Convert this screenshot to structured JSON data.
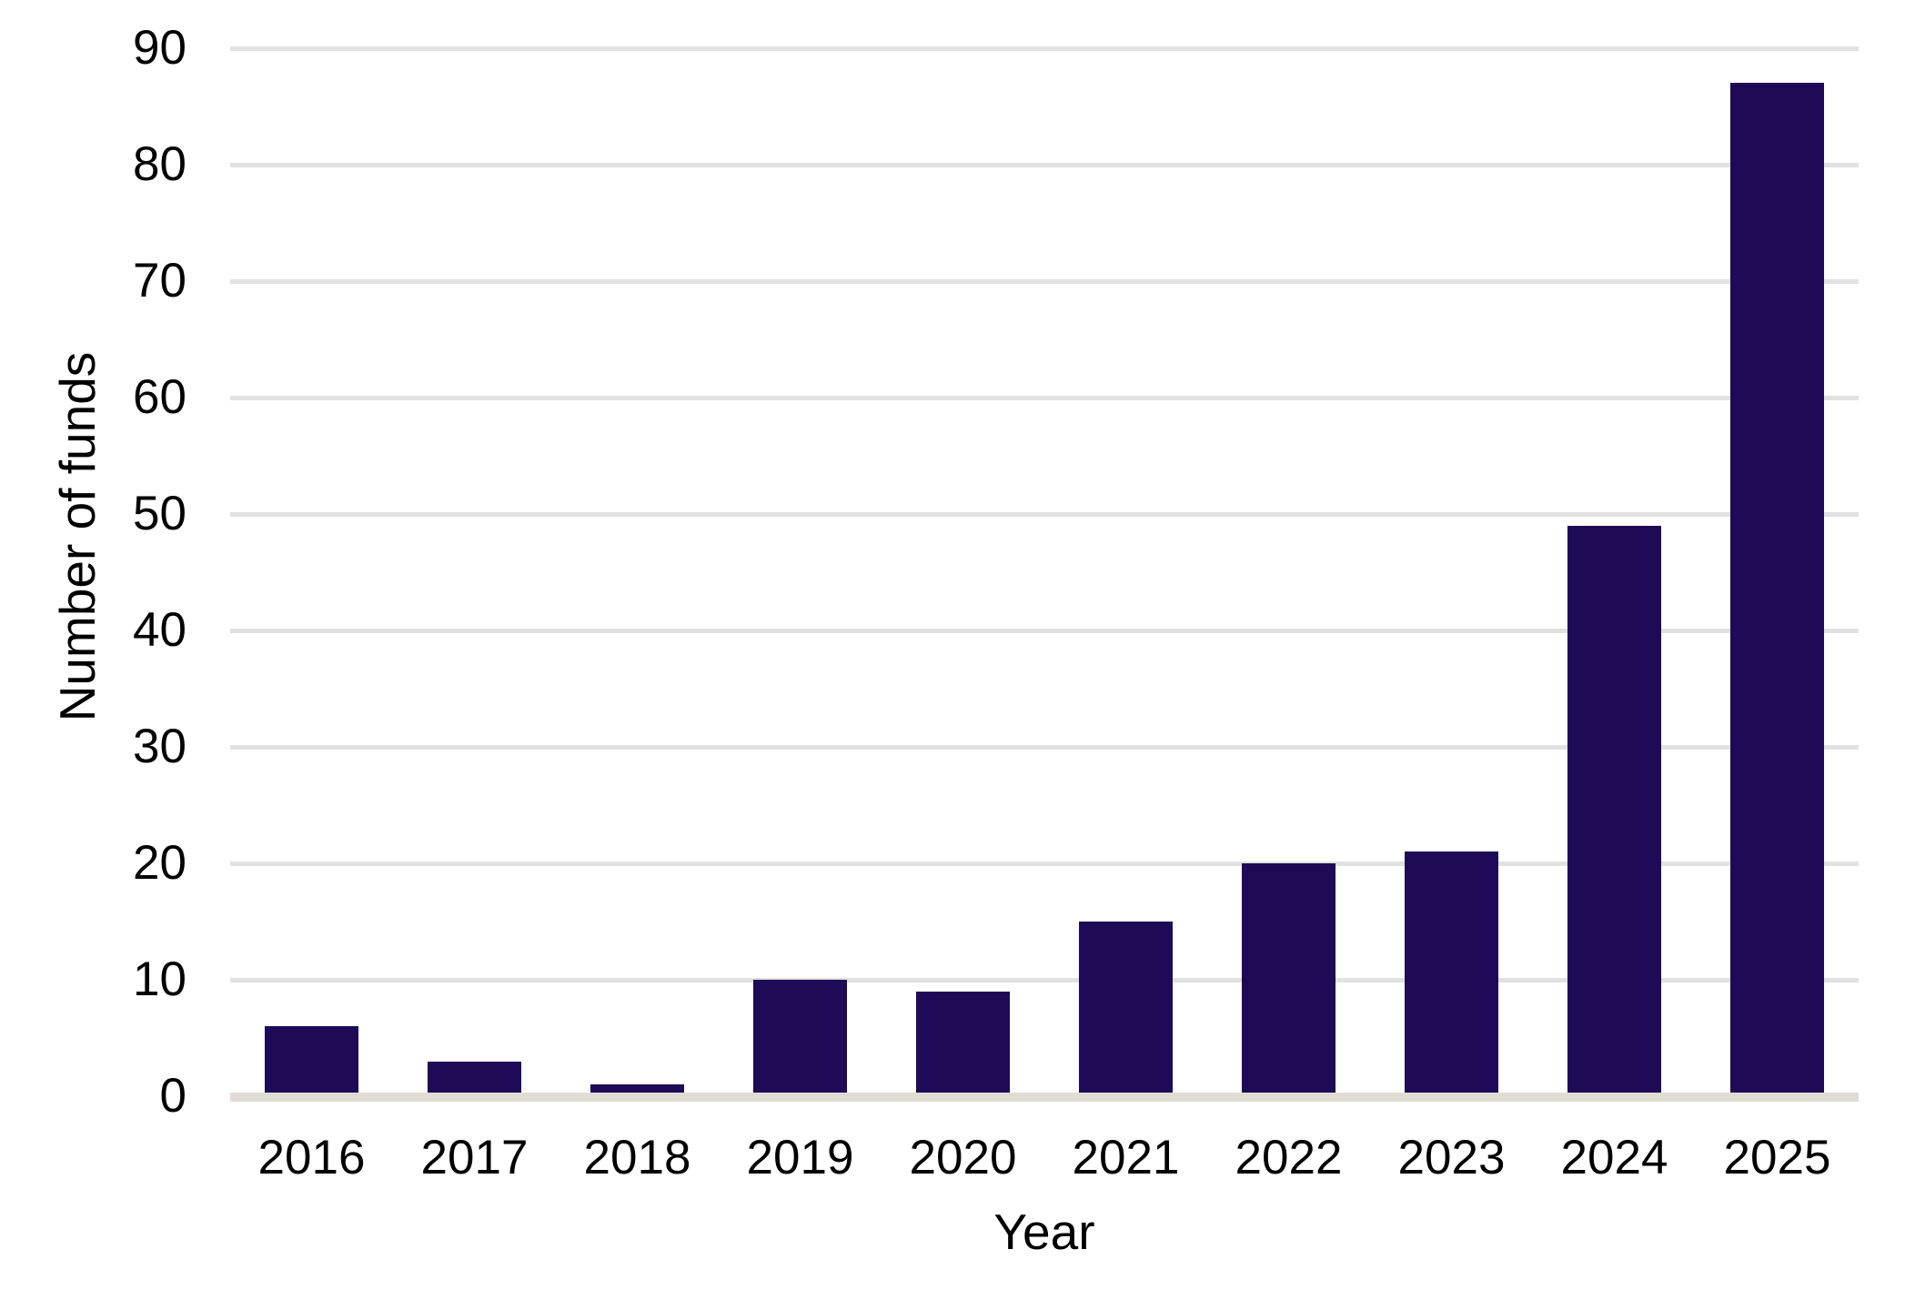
{
  "chart_data": {
    "type": "bar",
    "title": "",
    "xlabel": "Year",
    "ylabel": "Number of funds",
    "categories": [
      "2016",
      "2017",
      "2018",
      "2019",
      "2020",
      "2021",
      "2022",
      "2023",
      "2024",
      "2025"
    ],
    "values": [
      6,
      3,
      1,
      10,
      9,
      15,
      20,
      21,
      49,
      87
    ],
    "ylim": [
      0,
      90
    ],
    "yticks": [
      0,
      10,
      20,
      30,
      40,
      50,
      60,
      70,
      80,
      90
    ],
    "grid": "horizontal",
    "legend": "none",
    "colors": {
      "bar": "#1e0a56",
      "gridline": "#e1e1e1",
      "axis_line": "#e0dcd4",
      "text": "#000000",
      "background": "#ffffff"
    }
  }
}
